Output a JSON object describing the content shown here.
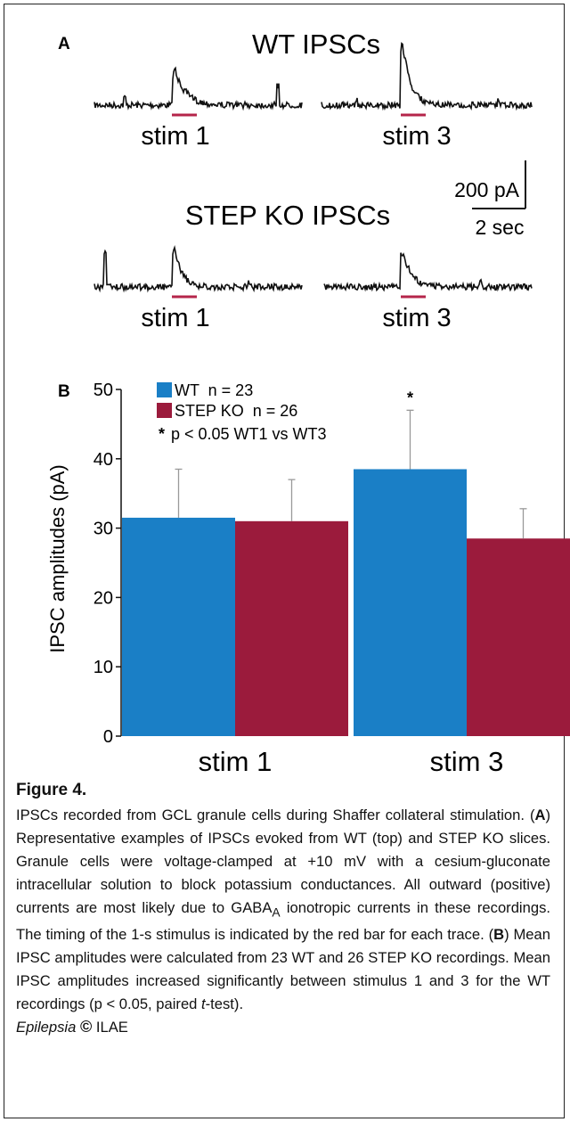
{
  "panel_a": {
    "label": "A",
    "wt_title": "WT IPSCs",
    "ko_title": "STEP KO IPSCs",
    "stim_labels": [
      "stim 1",
      "stim 3"
    ],
    "scale_bar_y": "200 pA",
    "scale_bar_x": "2 sec"
  },
  "chart_data": {
    "type": "bar",
    "panel_label": "B",
    "categories": [
      "stim 1",
      "stim 3"
    ],
    "series": [
      {
        "name": "WT  n = 23",
        "color": "#1a7fc6",
        "values": [
          31.5,
          38.5
        ],
        "errors": [
          7,
          8.5
        ]
      },
      {
        "name": "STEP KO  n = 26",
        "color": "#9b1b3c",
        "values": [
          31,
          28.5
        ],
        "errors": [
          6,
          4.3
        ]
      }
    ],
    "ylabel": "IPSC amplitudes (pA)",
    "ylim": [
      0,
      50
    ],
    "yticks": [
      0,
      10,
      20,
      30,
      40,
      50
    ],
    "significance_marker": "*",
    "significance_note": "p < 0.05 WT1 vs WT3",
    "legend_position": "top-left"
  },
  "caption": {
    "title": "Figure 4.",
    "body_html": "IPSCs recorded from GCL granule cells during Shaffer collateral stimulation. (<b>A</b>) Representative examples of IPSCs evoked from WT (top) and STEP KO slices. Granule cells were voltage-clamped at +10 mV with a cesium-gluconate intracellular solution to block potassium conductances. All outward (positive) currents are most likely due to GABA<sub>A</sub> ionotropic currents in these recordings. The timing of the 1-s stimulus is indicated by the red bar for each trace. (<b>B</b>) Mean IPSC amplitudes were calculated from 23 WT and 26 STEP KO recordings. Mean IPSC amplitudes increased significantly between stimulus 1 and 3 for the WT recordings (p &lt; 0.05, paired <i>t</i>-test).",
    "journal": "Epilepsia",
    "copyright_symbol": "©",
    "publisher": "ILAE"
  }
}
